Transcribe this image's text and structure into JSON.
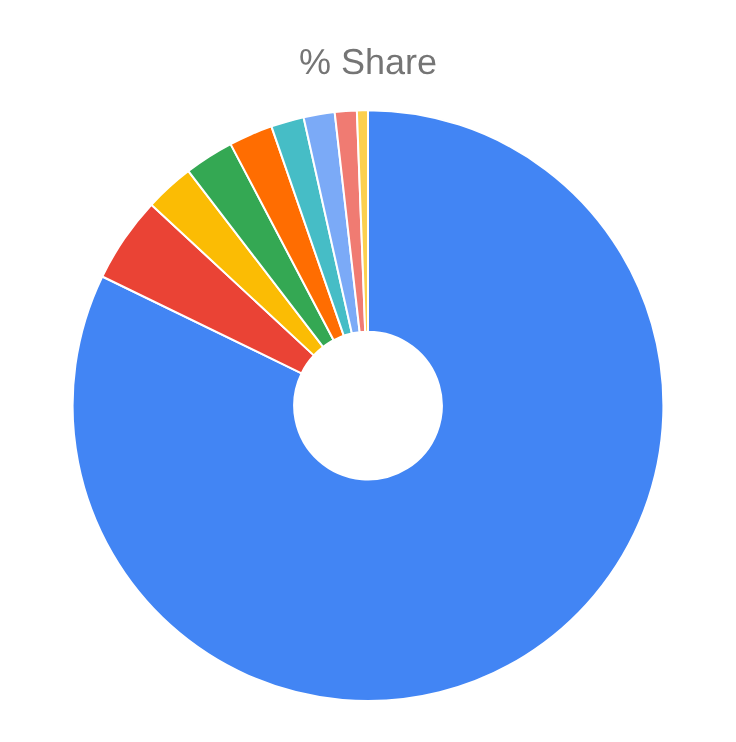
{
  "chart_data": {
    "type": "donut",
    "title": "% Share",
    "categories": [
      null,
      null,
      null,
      null,
      null,
      null,
      null,
      null,
      null
    ],
    "values": [
      82.2,
      4.7,
      2.7,
      2.7,
      2.4,
      1.8,
      1.7,
      1.2,
      0.6
    ],
    "colors": [
      "#4285f4",
      "#ea4335",
      "#fbbc04",
      "#34a853",
      "#ff6d01",
      "#46bdc6",
      "#7baaf7",
      "#f07b72",
      "#fcd04f"
    ],
    "legend": false
  }
}
